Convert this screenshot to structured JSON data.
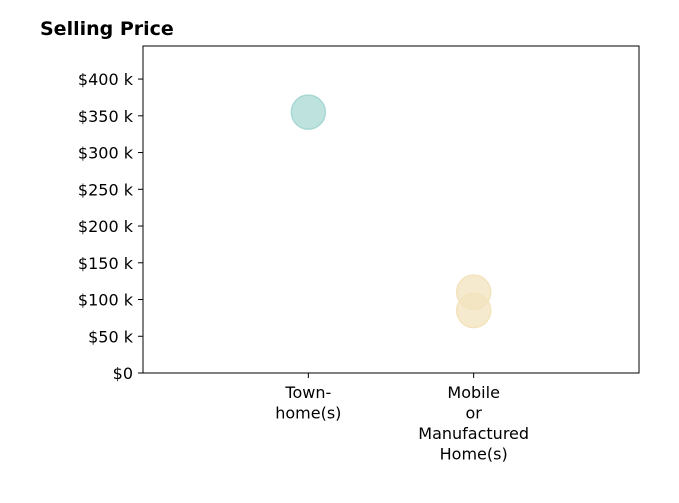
{
  "chart_data": {
    "type": "scatter",
    "title": "Selling Price",
    "xlabel": "",
    "ylabel": "",
    "categories": [
      [
        "Town-",
        "home(s)"
      ],
      [
        "Mobile",
        "or",
        "Manufactured",
        "Home(s)"
      ]
    ],
    "y_ticks": [
      "$0",
      "$50 k",
      "$100 k",
      "$150 k",
      "$200 k",
      "$250 k",
      "$300 k",
      "$350 k",
      "$400 k"
    ],
    "ylim": [
      0,
      445000
    ],
    "xlim": [
      -1,
      2
    ],
    "grid": false,
    "points": [
      {
        "category_index": 0,
        "value": 355000,
        "color": "#a8d8d3"
      },
      {
        "category_index": 1,
        "value": 110000,
        "color": "#f3e3bd"
      },
      {
        "category_index": 1,
        "value": 85000,
        "color": "#f3e3bd"
      }
    ]
  }
}
